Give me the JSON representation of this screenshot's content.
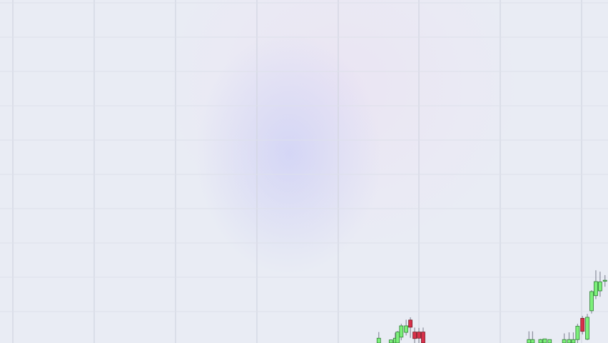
{
  "colors": {
    "background": "#e9ecf4",
    "grid_major": "#d3d6e2",
    "grid_minor": "#dde0ea",
    "bull": "#7cf07a",
    "bull_border": "#2f7d35",
    "bear": "#d8304a",
    "bear_border": "#7a1a24",
    "wick": "#8a8e9c"
  },
  "chart_data": {
    "type": "candlestick",
    "title": "",
    "xlabel": "",
    "ylabel": "",
    "grid": true,
    "legend": "none",
    "ylim": [
      0,
      100
    ],
    "xlim": [
      0,
      100
    ],
    "candles": [
      {
        "x": 62.3,
        "open": 0.0,
        "high": 3.2,
        "low": -1.0,
        "close": 1.4
      },
      {
        "x": 64.3,
        "open": 0.0,
        "high": 1.0,
        "low": -1.0,
        "close": 0.9
      },
      {
        "x": 65.0,
        "open": 0.0,
        "high": 3.0,
        "low": -1.0,
        "close": 1.4
      },
      {
        "x": 65.4,
        "open": 0.0,
        "high": 3.5,
        "low": -1.0,
        "close": 3.2
      },
      {
        "x": 66.0,
        "open": 1.7,
        "high": 5.6,
        "low": 0.8,
        "close": 5.0
      },
      {
        "x": 66.8,
        "open": 3.1,
        "high": 6.8,
        "low": 2.2,
        "close": 5.0
      },
      {
        "x": 67.5,
        "open": 6.7,
        "high": 7.5,
        "low": 1.5,
        "close": 4.6
      },
      {
        "x": 68.2,
        "open": 3.2,
        "high": 4.5,
        "low": 0.0,
        "close": 1.3
      },
      {
        "x": 68.9,
        "open": 3.2,
        "high": 4.4,
        "low": 0.0,
        "close": 1.4
      },
      {
        "x": 69.6,
        "open": 3.2,
        "high": 4.5,
        "low": -1.0,
        "close": 0.0
      },
      {
        "x": 87.0,
        "open": 0.0,
        "high": 3.4,
        "low": -1.0,
        "close": 1.0
      },
      {
        "x": 87.6,
        "open": 0.0,
        "high": 3.4,
        "low": -1.0,
        "close": 1.0
      },
      {
        "x": 88.9,
        "open": 0.0,
        "high": 1.2,
        "low": -1.0,
        "close": 1.0
      },
      {
        "x": 89.6,
        "open": 0.0,
        "high": 1.0,
        "low": -1.0,
        "close": 1.2
      },
      {
        "x": 90.4,
        "open": 0.0,
        "high": 1.0,
        "low": -1.0,
        "close": 1.0
      },
      {
        "x": 92.8,
        "open": 0.0,
        "high": 2.8,
        "low": -1.0,
        "close": 1.0
      },
      {
        "x": 93.6,
        "open": 0.0,
        "high": 3.1,
        "low": -1.0,
        "close": 1.0
      },
      {
        "x": 94.3,
        "open": 0.0,
        "high": 3.1,
        "low": -1.0,
        "close": 1.0
      },
      {
        "x": 95.0,
        "open": 1.0,
        "high": 5.6,
        "low": 0.0,
        "close": 4.9
      },
      {
        "x": 95.8,
        "open": 7.2,
        "high": 7.9,
        "low": 2.5,
        "close": 3.4
      },
      {
        "x": 96.6,
        "open": 1.1,
        "high": 8.5,
        "low": 0.8,
        "close": 7.5
      },
      {
        "x": 97.3,
        "open": 9.4,
        "high": 15.4,
        "low": 8.6,
        "close": 15.0
      },
      {
        "x": 98.0,
        "open": 13.8,
        "high": 21.2,
        "low": 12.8,
        "close": 17.9
      },
      {
        "x": 98.7,
        "open": 15.2,
        "high": 20.8,
        "low": 13.5,
        "close": 17.8
      },
      {
        "x": 99.5,
        "open": 18.0,
        "high": 19.8,
        "low": 16.4,
        "close": 18.3
      }
    ]
  }
}
